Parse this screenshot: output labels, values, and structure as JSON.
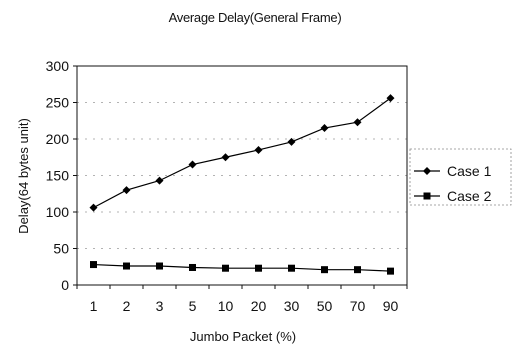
{
  "chart_data": {
    "type": "line",
    "title": "Average Delay(General Frame)",
    "xlabel": "Jumbo Packet (%)",
    "ylabel": "Delay(64 bytes unit)",
    "categories": [
      "1",
      "2",
      "3",
      "5",
      "10",
      "20",
      "30",
      "50",
      "70",
      "90"
    ],
    "ylim": [
      0,
      300
    ],
    "yticks": [
      0,
      50,
      100,
      150,
      200,
      250,
      300
    ],
    "grid": true,
    "legend_position": "right",
    "series": [
      {
        "name": "Case 1",
        "marker": "diamond",
        "color": "#000000",
        "values": [
          106,
          130,
          143,
          165,
          175,
          185,
          196,
          215,
          223,
          256
        ]
      },
      {
        "name": "Case 2",
        "marker": "square",
        "color": "#000000",
        "values": [
          28,
          26,
          26,
          24,
          23,
          23,
          23,
          21,
          21,
          19
        ]
      }
    ]
  }
}
